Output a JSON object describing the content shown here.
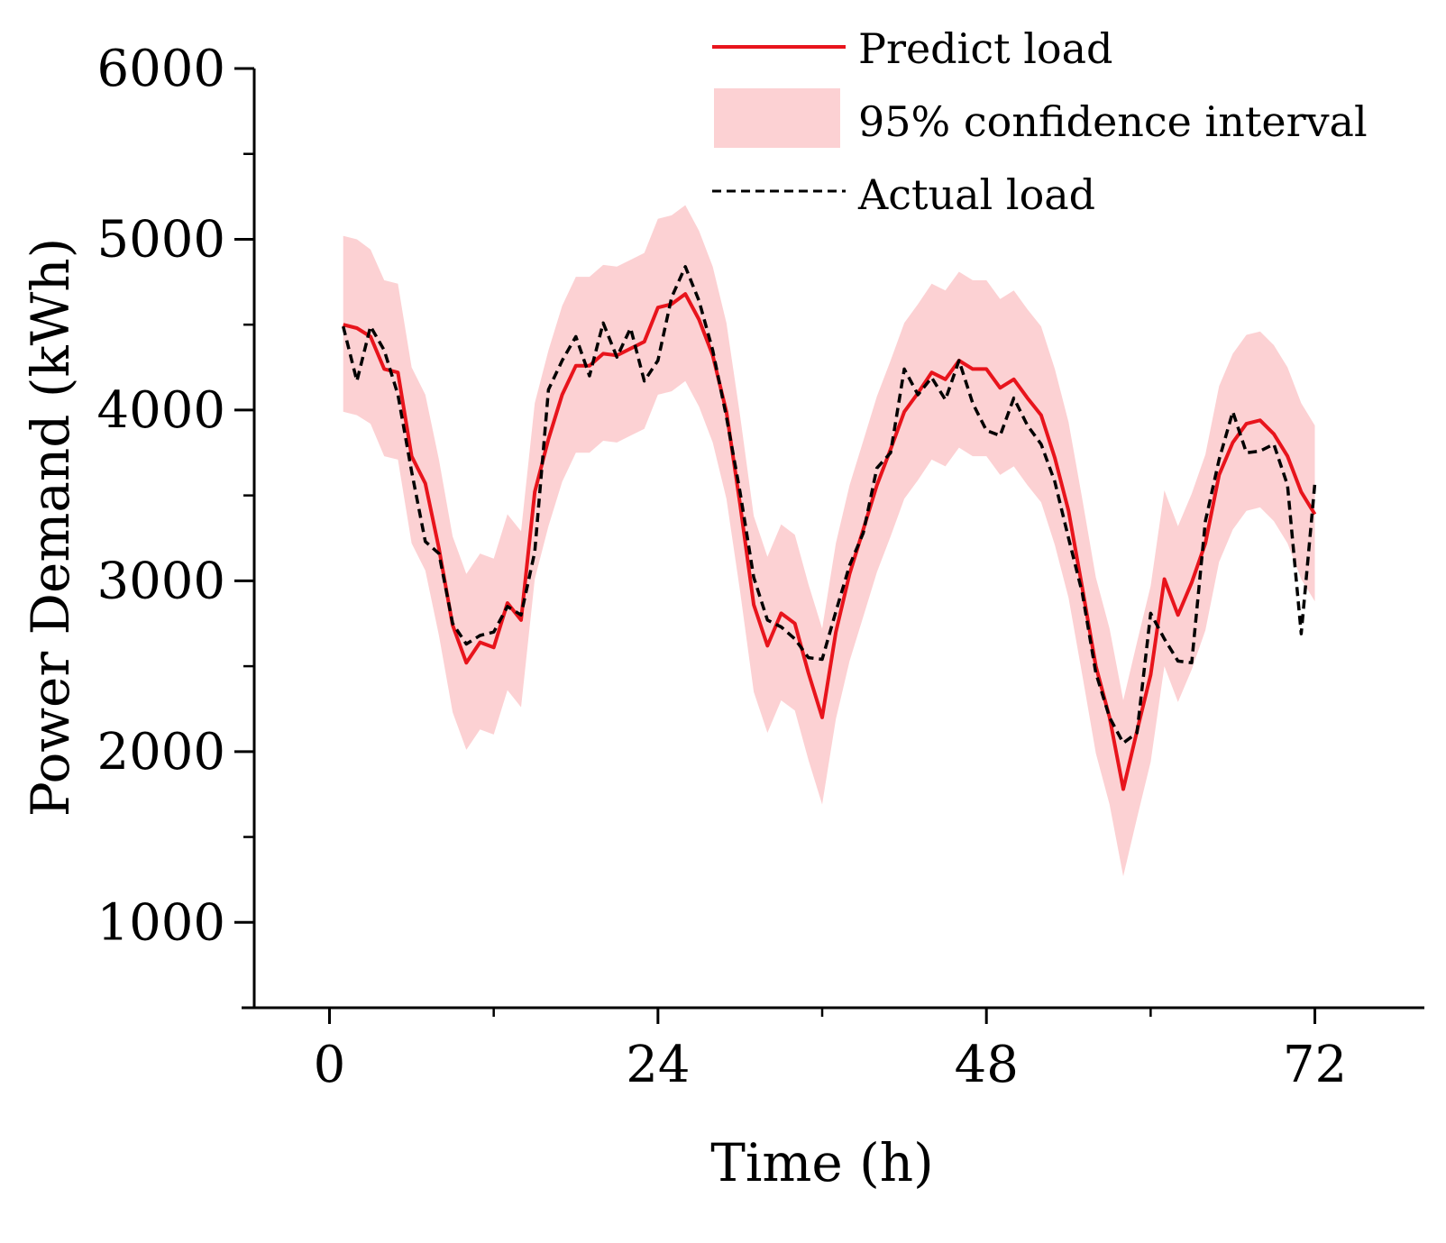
{
  "chart_data": {
    "type": "line",
    "xlabel": "Time (h)",
    "ylabel": "Power Demand (kWh)",
    "xlim": [
      -5.5,
      80
    ],
    "ylim": [
      500,
      6000
    ],
    "xticks": [
      0,
      24,
      48,
      72
    ],
    "xticks_minor": [
      12,
      36,
      60
    ],
    "yticks": [
      1000,
      2000,
      3000,
      4000,
      5000,
      6000
    ],
    "yticks_minor": [
      1500,
      2500,
      3500,
      4500,
      5500
    ],
    "grid": false,
    "legend_position": "top-right",
    "legend": {
      "predict": "Predict load",
      "ci": "95% confidence interval",
      "actual": "Actual load"
    },
    "colors": {
      "predict": "#e8141c",
      "ci": "#fcd1d3",
      "actual": "#000000"
    },
    "series": [
      {
        "key": "predict",
        "name": "Predict load",
        "x": [
          1,
          2,
          3,
          4,
          5,
          6,
          7,
          8,
          9,
          10,
          11,
          12,
          13,
          14,
          15,
          16,
          17,
          18,
          19,
          20,
          21,
          22,
          23,
          24,
          25,
          26,
          27,
          28,
          29,
          30,
          31,
          32,
          33,
          34,
          35,
          36,
          37,
          38,
          39,
          40,
          41,
          42,
          43,
          44,
          45,
          46,
          47,
          48,
          49,
          50,
          51,
          52,
          53,
          54,
          55,
          56,
          57,
          58,
          59,
          60,
          61,
          62,
          63,
          64,
          65,
          66,
          67,
          68,
          69,
          70,
          71,
          72
        ],
        "y": [
          4500,
          4480,
          4430,
          4240,
          4220,
          3730,
          3570,
          3190,
          2740,
          2520,
          2640,
          2610,
          2870,
          2770,
          3520,
          3830,
          4090,
          4260,
          4260,
          4330,
          4320,
          4360,
          4400,
          4600,
          4620,
          4680,
          4530,
          4320,
          3990,
          3450,
          2860,
          2620,
          2810,
          2750,
          2460,
          2200,
          2700,
          3040,
          3300,
          3560,
          3770,
          3990,
          4100,
          4220,
          4180,
          4290,
          4240,
          4240,
          4130,
          4180,
          4070,
          3970,
          3720,
          3410,
          2960,
          2500,
          2200,
          1780,
          2120,
          2450,
          3010,
          2800,
          2990,
          3220,
          3620,
          3810,
          3920,
          3940,
          3860,
          3730,
          3520,
          3390
        ]
      },
      {
        "key": "actual",
        "name": "Actual load",
        "x": [
          1,
          2,
          3,
          4,
          5,
          6,
          7,
          8,
          9,
          10,
          11,
          12,
          13,
          14,
          15,
          16,
          17,
          18,
          19,
          20,
          21,
          22,
          23,
          24,
          25,
          26,
          27,
          28,
          29,
          30,
          31,
          32,
          33,
          34,
          35,
          36,
          37,
          38,
          39,
          40,
          41,
          42,
          43,
          44,
          45,
          46,
          47,
          48,
          49,
          50,
          51,
          52,
          53,
          54,
          55,
          56,
          57,
          58,
          59,
          60,
          61,
          62,
          63,
          64,
          65,
          66,
          67,
          68,
          69,
          70,
          71,
          72
        ],
        "y": [
          4490,
          4170,
          4490,
          4350,
          4090,
          3640,
          3230,
          3160,
          2750,
          2630,
          2680,
          2700,
          2850,
          2800,
          3170,
          4120,
          4290,
          4430,
          4200,
          4510,
          4310,
          4480,
          4170,
          4290,
          4660,
          4840,
          4640,
          4350,
          3960,
          3520,
          3020,
          2770,
          2730,
          2660,
          2550,
          2540,
          2820,
          3090,
          3280,
          3660,
          3750,
          4240,
          4090,
          4190,
          4060,
          4290,
          4040,
          3880,
          3850,
          4070,
          3910,
          3800,
          3580,
          3250,
          2930,
          2460,
          2200,
          2050,
          2110,
          2810,
          2660,
          2530,
          2520,
          3350,
          3710,
          3990,
          3750,
          3760,
          3800,
          3560,
          2690,
          3570
        ]
      },
      {
        "key": "ci",
        "name": "95% confidence interval",
        "x": [
          1,
          2,
          3,
          4,
          5,
          6,
          7,
          8,
          9,
          10,
          11,
          12,
          13,
          14,
          15,
          16,
          17,
          18,
          19,
          20,
          21,
          22,
          23,
          24,
          25,
          26,
          27,
          28,
          29,
          30,
          31,
          32,
          33,
          34,
          35,
          36,
          37,
          38,
          39,
          40,
          41,
          42,
          43,
          44,
          45,
          46,
          47,
          48,
          49,
          50,
          51,
          52,
          53,
          54,
          55,
          56,
          57,
          58,
          59,
          60,
          61,
          62,
          63,
          64,
          65,
          66,
          67,
          68,
          69,
          70,
          71,
          72
        ],
        "upper": [
          5020,
          5000,
          4940,
          4760,
          4740,
          4250,
          4090,
          3710,
          3260,
          3040,
          3160,
          3130,
          3390,
          3290,
          4040,
          4350,
          4610,
          4780,
          4780,
          4850,
          4840,
          4880,
          4920,
          5120,
          5140,
          5200,
          5050,
          4840,
          4510,
          3970,
          3380,
          3140,
          3330,
          3270,
          2980,
          2720,
          3220,
          3560,
          3820,
          4080,
          4290,
          4510,
          4620,
          4740,
          4700,
          4810,
          4760,
          4760,
          4650,
          4700,
          4590,
          4490,
          4240,
          3930,
          3480,
          3020,
          2720,
          2300,
          2640,
          2970,
          3530,
          3320,
          3510,
          3740,
          4140,
          4330,
          4440,
          4460,
          4380,
          4250,
          4040,
          3910
        ],
        "lower": [
          3990,
          3970,
          3920,
          3730,
          3710,
          3220,
          3060,
          2680,
          2230,
          2010,
          2130,
          2100,
          2360,
          2260,
          3010,
          3320,
          3580,
          3750,
          3750,
          3820,
          3810,
          3850,
          3890,
          4090,
          4110,
          4170,
          4020,
          3810,
          3480,
          2940,
          2350,
          2110,
          2300,
          2240,
          1950,
          1690,
          2190,
          2530,
          2790,
          3050,
          3260,
          3480,
          3590,
          3710,
          3670,
          3780,
          3730,
          3730,
          3620,
          3670,
          3560,
          3460,
          3210,
          2900,
          2450,
          1990,
          1690,
          1270,
          1610,
          1940,
          2500,
          2290,
          2480,
          2710,
          3110,
          3300,
          3410,
          3430,
          3350,
          3220,
          3010,
          2880
        ]
      }
    ]
  }
}
